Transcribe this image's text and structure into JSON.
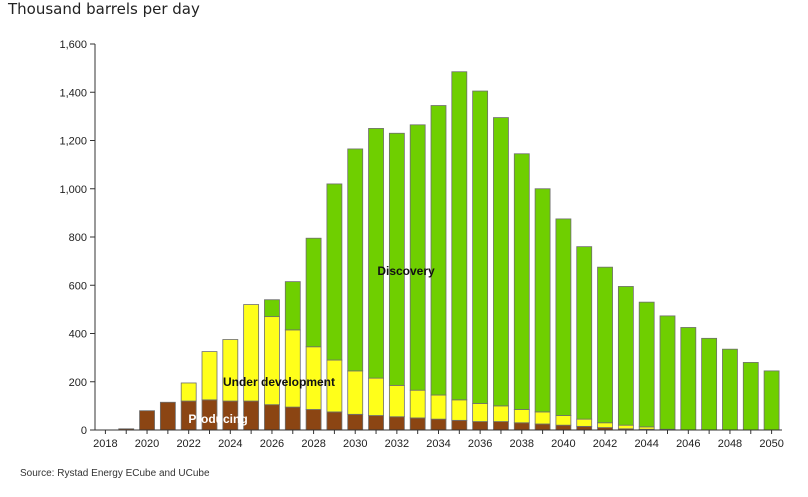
{
  "unit_label": "Thousand barrels per day",
  "source": "Source: Rystad Energy ECube and UCube",
  "colors": {
    "producing": "#8b4513",
    "under_development": "#ffff1a",
    "discovery": "#6fcf00",
    "edge": "#6e6e6e"
  },
  "chart_data": {
    "type": "bar",
    "stacked": true,
    "ylabel": "Thousand barrels per day",
    "ylim": [
      0,
      1600
    ],
    "yticks": [
      0,
      200,
      400,
      600,
      800,
      1000,
      1200,
      1400,
      1600
    ],
    "ytick_labels": [
      "0",
      "200",
      "400",
      "600",
      "800",
      "1,000",
      "1,200",
      "1,400",
      "1,600"
    ],
    "xtick_labels": [
      "2018",
      "2020",
      "2022",
      "2024",
      "2026",
      "2028",
      "2030",
      "2032",
      "2034",
      "2036",
      "2038",
      "2040",
      "2042",
      "2044",
      "2046",
      "2048",
      "2050"
    ],
    "categories": [
      2018,
      2019,
      2020,
      2021,
      2022,
      2023,
      2024,
      2025,
      2026,
      2027,
      2028,
      2029,
      2030,
      2031,
      2032,
      2033,
      2034,
      2035,
      2036,
      2037,
      2038,
      2039,
      2040,
      2041,
      2042,
      2043,
      2044,
      2045,
      2046,
      2047,
      2048,
      2049,
      2050
    ],
    "series": [
      {
        "name": "Producing",
        "values": [
          0,
          5,
          80,
          115,
          120,
          125,
          120,
          120,
          105,
          95,
          85,
          75,
          65,
          60,
          55,
          50,
          45,
          40,
          35,
          35,
          30,
          25,
          20,
          15,
          10,
          5,
          3,
          0,
          0,
          0,
          0,
          0,
          0
        ]
      },
      {
        "name": "Under development",
        "values": [
          0,
          0,
          0,
          0,
          75,
          200,
          255,
          400,
          365,
          320,
          260,
          215,
          180,
          155,
          130,
          115,
          100,
          85,
          75,
          65,
          55,
          50,
          40,
          30,
          20,
          15,
          10,
          3,
          0,
          0,
          0,
          0,
          0
        ]
      },
      {
        "name": "Discovery",
        "values": [
          0,
          0,
          0,
          0,
          0,
          0,
          0,
          0,
          70,
          200,
          450,
          730,
          920,
          1035,
          1045,
          1100,
          1200,
          1360,
          1295,
          1195,
          1060,
          925,
          815,
          715,
          645,
          575,
          517,
          470,
          425,
          380,
          335,
          280,
          245
        ]
      }
    ]
  }
}
